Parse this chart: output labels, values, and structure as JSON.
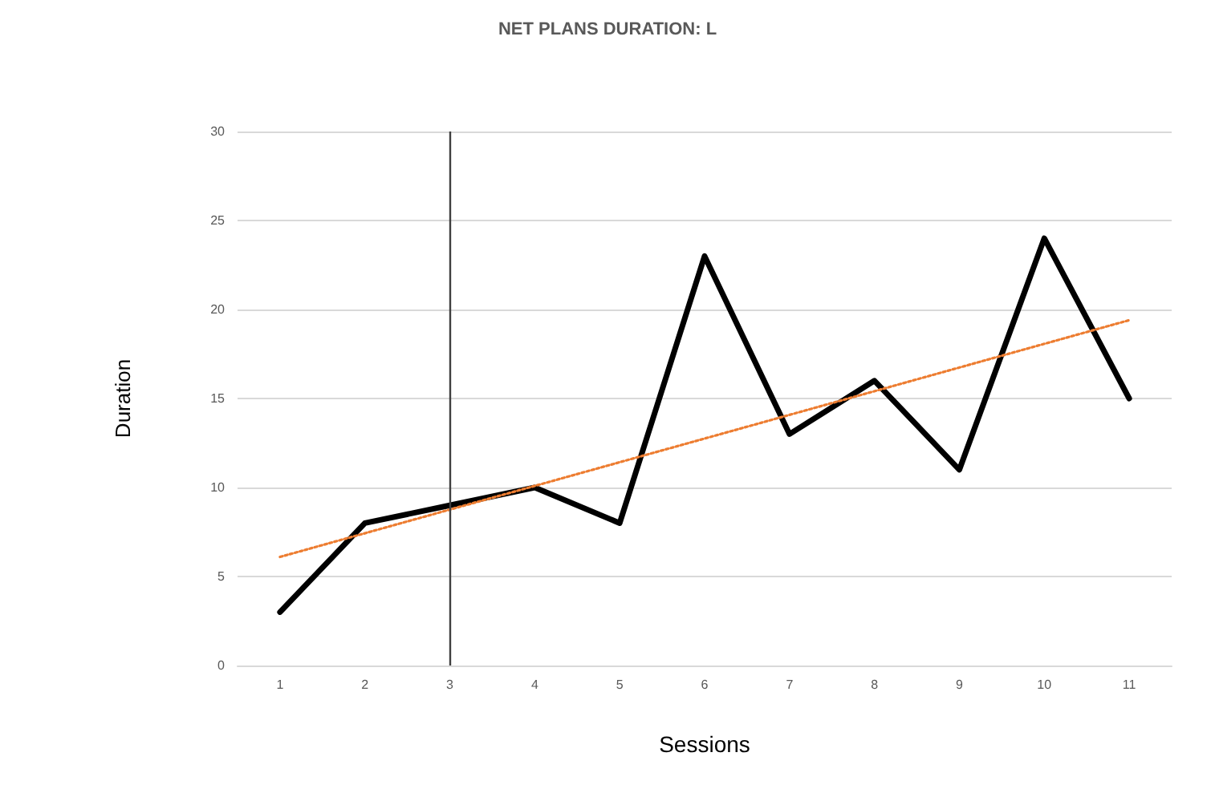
{
  "chart_data": {
    "type": "line",
    "title": "NET PLANS DURATION: L",
    "xlabel": "Sessions",
    "ylabel": "Duration",
    "categories": [
      "1",
      "2",
      "3",
      "4",
      "5",
      "6",
      "7",
      "8",
      "9",
      "10",
      "11"
    ],
    "series": [
      {
        "color": "#000000",
        "values": [
          3,
          8,
          9,
          10,
          8,
          23,
          13,
          16,
          11,
          24,
          15
        ]
      },
      {
        "type": "line",
        "color": "#ed7d31",
        "x": [
          "1",
          "11"
        ],
        "values": [
          6.1,
          19.4
        ],
        "line_style": "dotted"
      }
    ],
    "ylim": [
      0,
      30
    ],
    "yticks": [
      0,
      5,
      10,
      15,
      20,
      25,
      30
    ],
    "grid": "y",
    "marker": "none",
    "ref_lines": [
      {
        "axis": "x",
        "value": "3",
        "color": "#404040"
      }
    ]
  }
}
